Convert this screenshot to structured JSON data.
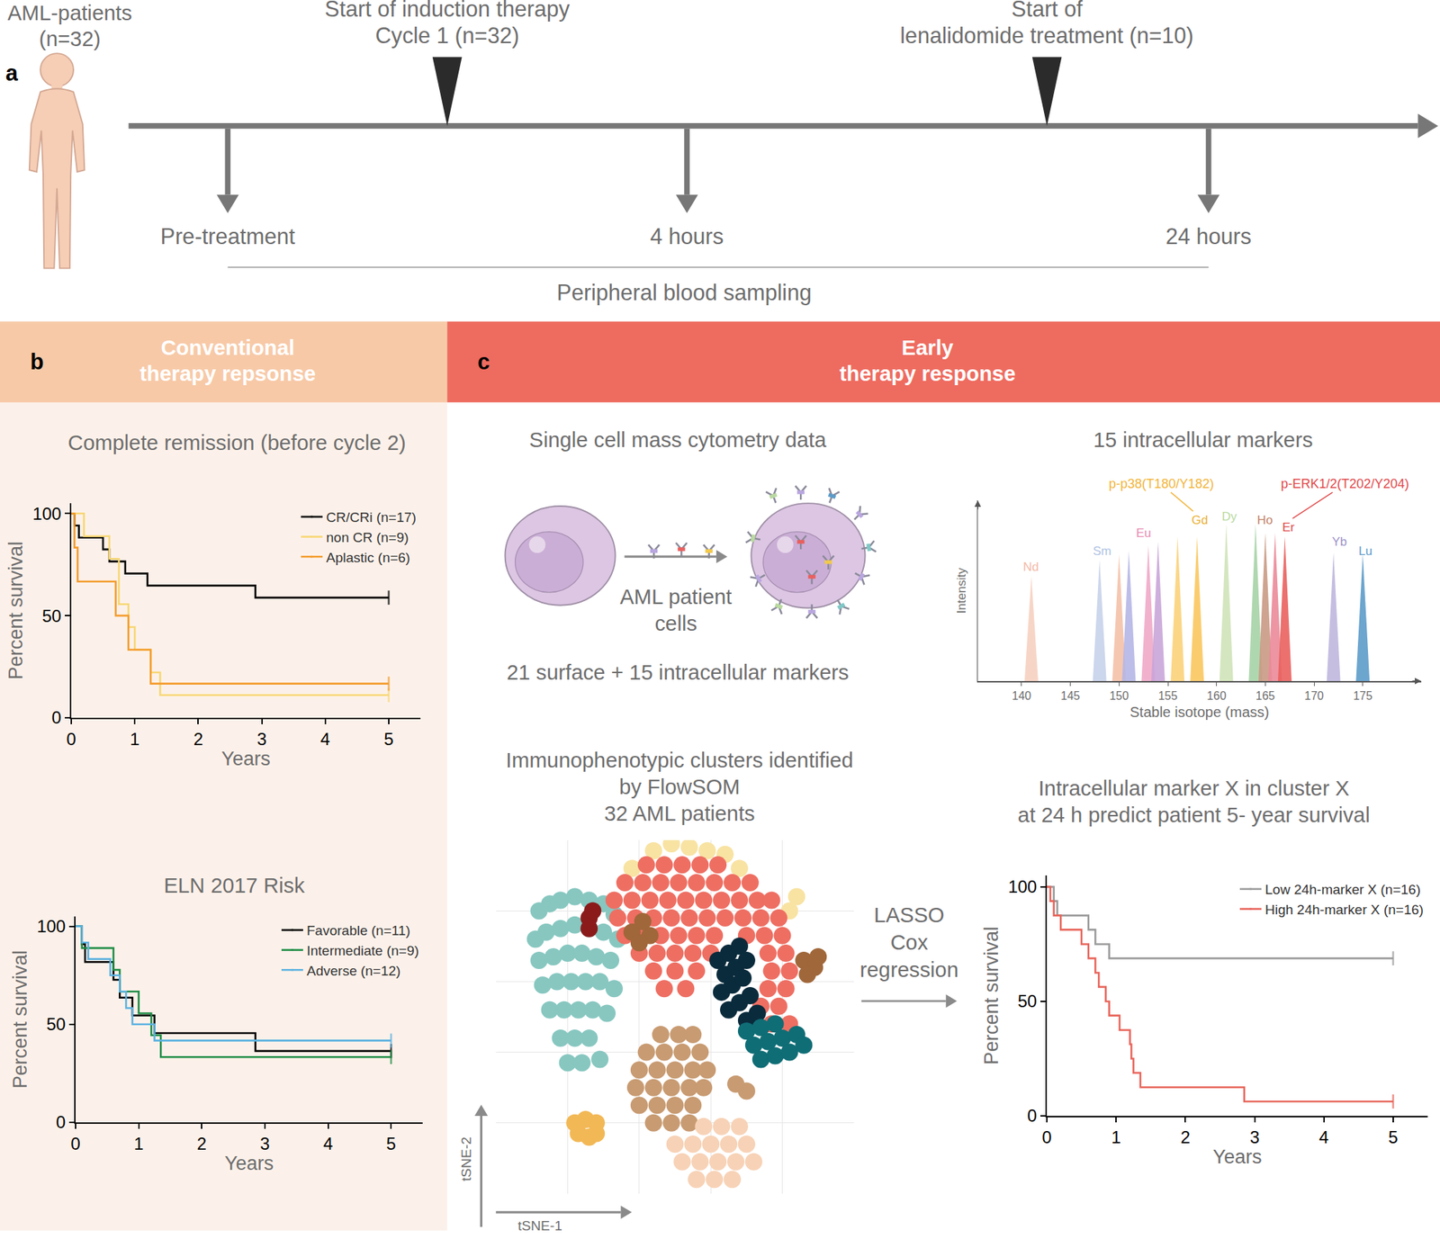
{
  "panel_a": {
    "label": "a",
    "patients": [
      "AML-patients",
      "(n=32)"
    ],
    "events": [
      [
        "Start of induction therapy",
        "Cycle 1 (n=32)"
      ],
      [
        "Start of",
        "lenalidomide treatment (n=10)"
      ]
    ],
    "samples": [
      "Pre-treatment",
      "4 hours",
      "24 hours"
    ],
    "sampling": "Peripheral blood sampling"
  },
  "panel_b": {
    "label": "b",
    "header": [
      "Conventional",
      "therapy repsonse"
    ]
  },
  "panel_c": {
    "label": "c",
    "header": [
      "Early",
      "therapy response"
    ],
    "mass_cytometry": {
      "title": "Single cell mass cytometry data",
      "cell_label": [
        "AML patient",
        "cells"
      ],
      "caption": "21 surface + 15 intracellular markers"
    },
    "method": [
      "LASSO",
      "Cox",
      "regression"
    ]
  },
  "chart_data": [
    {
      "type": "line",
      "title": [
        "Complete remission (before cycle 2)"
      ],
      "x_label": "Years",
      "y_label": "Percent survival",
      "xlim": [
        0,
        5.5
      ],
      "ylim": [
        0,
        105
      ],
      "xticks": [
        0,
        1,
        2,
        3,
        4,
        5
      ],
      "yticks": [
        0,
        50,
        100
      ],
      "line_style": "step",
      "marker": "line-ns",
      "legend": "top right",
      "series": [
        {
          "name": "CR/CRi (n=17)",
          "color": "#000000",
          "x": [
            0,
            0.05,
            0.12,
            0.5,
            0.6,
            0.85,
            1.2,
            2.9,
            5
          ],
          "values": [
            100,
            94.1,
            88.2,
            82.4,
            76.5,
            70.6,
            64.7,
            58.8,
            58.8
          ]
        },
        {
          "name": "non CR (n=9)",
          "color": "#F7D774",
          "x": [
            0,
            0.2,
            0.6,
            0.75,
            0.9,
            1.0,
            1.25,
            1.4,
            5
          ],
          "values": [
            100,
            88.9,
            77.8,
            55.6,
            44.4,
            33.3,
            22.2,
            11.1,
            11.1
          ]
        },
        {
          "name": "Aplastic (n=6)",
          "color": "#F39C2C",
          "x": [
            0,
            0.05,
            0.1,
            0.7,
            0.9,
            1.25,
            5
          ],
          "values": [
            100,
            83.3,
            66.7,
            50,
            33.3,
            16.7,
            16.7
          ]
        }
      ]
    },
    {
      "type": "line",
      "title": [
        "ELN 2017 Risk"
      ],
      "x_label": "Years",
      "y_label": "Percent survival",
      "xlim": [
        0,
        5.5
      ],
      "ylim": [
        0,
        105
      ],
      "xticks": [
        0,
        1,
        2,
        3,
        4,
        5
      ],
      "yticks": [
        0,
        50,
        100
      ],
      "line_style": "step",
      "marker": "line-ns",
      "legend": "top right",
      "series": [
        {
          "name": "Favorable (n=11)",
          "color": "#000000",
          "x": [
            0,
            0.1,
            0.15,
            0.6,
            0.7,
            0.9,
            1.25,
            2.85,
            5
          ],
          "values": [
            100,
            90.9,
            81.8,
            72.7,
            63.6,
            54.5,
            45.5,
            36.4,
            36.4
          ]
        },
        {
          "name": "Intermediate (n=9)",
          "color": "#1E8C45",
          "x": [
            0,
            0.1,
            0.6,
            0.7,
            1.0,
            1.2,
            1.35,
            5
          ],
          "values": [
            100,
            88.9,
            77.8,
            66.7,
            55.6,
            44.4,
            33.3,
            33.3
          ]
        },
        {
          "name": "Adverse (n=12)",
          "color": "#5BB2E0",
          "x": [
            0,
            0.1,
            0.2,
            0.55,
            0.7,
            0.8,
            0.9,
            1.25,
            5
          ],
          "values": [
            100,
            91.7,
            83.3,
            75,
            66.7,
            58.3,
            50,
            41.7,
            41.7
          ]
        }
      ]
    },
    {
      "type": "spectrum",
      "title": [
        "15 intracellular markers"
      ],
      "x_label": "Stable isotope (mass)",
      "y_label": "Intensity",
      "xlim": [
        135.5,
        181
      ],
      "ylim": [
        0,
        100
      ],
      "xticks": [
        140,
        145,
        150,
        155,
        160,
        165,
        170,
        175
      ],
      "tick_labels": "x",
      "x": [
        141,
        148,
        150,
        151,
        153,
        154,
        156,
        158,
        161,
        164,
        165,
        166,
        167,
        172,
        175
      ],
      "values": [
        58,
        67,
        70,
        72,
        75,
        77,
        80,
        80,
        87,
        87,
        82,
        82,
        80,
        71,
        70
      ],
      "colors": [
        "#F6D0C0",
        "#C7D2EA",
        "#F4C1A8",
        "#B5B6E6",
        "#F0A8C8",
        "#C9A5D8",
        "#FBD27A",
        "#F9C75E",
        "#CFE3B8",
        "#A6D3A6",
        "#C99A84",
        "#EB8A99",
        "#E9605E",
        "#BFB7DE",
        "#5C9BC9"
      ],
      "element_labels": [
        {
          "text": "Nd",
          "x": 141,
          "y": 63,
          "color": "#F4B9A6"
        },
        {
          "text": "Sm",
          "x": 148.3,
          "y": 72,
          "color": "#AFC3E3"
        },
        {
          "text": "Eu",
          "x": 152.5,
          "y": 82,
          "color": "#E98BB3"
        },
        {
          "text": "Gd",
          "x": 158.3,
          "y": 89,
          "color": "#E8B030"
        },
        {
          "text": "Dy",
          "x": 161.3,
          "y": 91,
          "color": "#B9D9A0"
        },
        {
          "text": "Ho",
          "x": 165,
          "y": 89,
          "color": "#C08469"
        },
        {
          "text": "Er",
          "x": 167.4,
          "y": 85,
          "color": "#E0484A"
        },
        {
          "text": "Yb",
          "x": 172.6,
          "y": 77,
          "color": "#9B93C8"
        },
        {
          "text": "Lu",
          "x": 175.3,
          "y": 72,
          "color": "#5C9BC9"
        }
      ],
      "callouts": [
        {
          "text": "p-p38(T180/Y182)",
          "color": "#F2B53A",
          "x": 157.6,
          "y": 94,
          "text_x": 154.3,
          "text_y": 109
        },
        {
          "text": "p-ERK1/2(T202/Y204)",
          "color": "#E0484A",
          "x": 167.8,
          "y": 90,
          "text_x": 173.2,
          "text_y": 109
        }
      ]
    },
    {
      "type": "scatter",
      "title": [
        "Immunophenotypic clusters identified",
        "by FlowSOM",
        "32 AML patients"
      ],
      "x_label": "tSNE-1",
      "y_label": "tSNE-2",
      "xlim": [
        0,
        100
      ],
      "ylim": [
        0,
        100
      ],
      "xticks": [
        20,
        40,
        60,
        80
      ],
      "yticks": [
        20,
        40,
        60,
        80
      ],
      "grid": true,
      "tick_labels": false,
      "series": [
        {
          "color": "#87C7C0",
          "x": [
            12,
            15,
            18,
            22,
            26,
            30,
            33,
            11,
            14,
            18,
            22,
            26,
            30,
            34,
            12,
            16,
            20,
            24,
            28,
            32,
            13,
            17,
            21,
            25,
            29,
            33,
            15,
            19,
            23,
            27,
            31,
            18,
            22,
            26,
            20,
            24,
            29
          ],
          "values": [
            80,
            82,
            83,
            84,
            83,
            82,
            79,
            72,
            74,
            75,
            76,
            75,
            74,
            72,
            66,
            67,
            68,
            68,
            67,
            66,
            59,
            60,
            60,
            60,
            60,
            58,
            52,
            52,
            52,
            52,
            51,
            44,
            44,
            44,
            37,
            37,
            38
          ]
        },
        {
          "color": "#C89B72",
          "x": [
            46,
            51,
            55,
            42,
            47,
            52,
            57,
            40,
            45,
            50,
            55,
            59,
            39,
            44,
            49,
            54,
            58,
            40,
            45,
            50,
            55,
            44,
            49,
            54,
            67,
            70
          ],
          "values": [
            45,
            45,
            45,
            40,
            40,
            40,
            40,
            35,
            35,
            35,
            35,
            35,
            30,
            30,
            30,
            30,
            30,
            25,
            25,
            25,
            25,
            20,
            20,
            20,
            31,
            29
          ]
        },
        {
          "color": "#F7D2B6",
          "x": [
            58,
            63,
            68,
            50,
            55,
            60,
            65,
            70,
            52,
            57,
            62,
            67,
            72,
            56,
            61,
            66
          ],
          "values": [
            19,
            19,
            19,
            14,
            14,
            14,
            14,
            14,
            9,
            9,
            9,
            9,
            9,
            4,
            4,
            4
          ]
        },
        {
          "color": "#F2B856",
          "x": [
            22,
            25,
            28,
            23,
            26,
            28
          ],
          "values": [
            20,
            21,
            20,
            17,
            16,
            17
          ]
        },
        {
          "color": "#F8E3A3",
          "x": [
            44,
            49,
            54,
            59,
            64,
            38,
            68,
            82,
            84
          ],
          "values": [
            97,
            99,
            98,
            97,
            96,
            92,
            92,
            80,
            84
          ]
        },
        {
          "color": "#EE6E62",
          "x": [
            42,
            47,
            52,
            57,
            62,
            36,
            41,
            46,
            51,
            56,
            61,
            66,
            71,
            33,
            38,
            43,
            48,
            53,
            58,
            63,
            68,
            73,
            77,
            34,
            39,
            44,
            49,
            54,
            59,
            64,
            69,
            74,
            79,
            36,
            41,
            46,
            51,
            56,
            61,
            70,
            75,
            80,
            40,
            45,
            50,
            55,
            60,
            76,
            81,
            44,
            50,
            56,
            77,
            82,
            47,
            53,
            76,
            81,
            74,
            79,
            72,
            77,
            82
          ],
          "values": [
            93,
            93,
            93,
            93,
            93,
            88,
            88,
            88,
            88,
            88,
            88,
            88,
            88,
            83,
            83,
            83,
            83,
            83,
            83,
            83,
            83,
            83,
            83,
            78,
            78,
            78,
            78,
            78,
            78,
            78,
            78,
            78,
            78,
            73,
            73,
            73,
            73,
            73,
            73,
            73,
            73,
            73,
            68,
            68,
            68,
            68,
            68,
            68,
            68,
            63,
            63,
            63,
            63,
            63,
            58,
            58,
            58,
            58,
            53,
            53,
            48,
            48,
            48
          ]
        },
        {
          "color": "#A0673A",
          "x": [
            38,
            41,
            43,
            40,
            86,
            89,
            87,
            90
          ],
          "values": [
            74,
            77,
            73,
            71,
            66,
            64,
            62,
            67
          ]
        },
        {
          "color": "#0A2B3C",
          "x": [
            62,
            65,
            68,
            64,
            67,
            70,
            63,
            66,
            69,
            65,
            68,
            71,
            70,
            73
          ],
          "values": [
            66,
            68,
            70,
            62,
            64,
            66,
            57,
            59,
            61,
            52,
            54,
            56,
            49,
            51
          ]
        },
        {
          "color": "#0F6D75",
          "x": [
            70,
            74,
            78,
            72,
            76,
            80,
            84,
            74,
            78,
            82,
            86
          ],
          "values": [
            46,
            47,
            48,
            42,
            43,
            44,
            45,
            38,
            39,
            40,
            42
          ]
        },
        {
          "color": "#8B1A1A",
          "x": [
            26,
            26,
            27
          ],
          "values": [
            78,
            75,
            80
          ]
        }
      ]
    },
    {
      "type": "line",
      "title": [
        "Intracellular marker X in cluster X",
        "at 24 h predict patient 5- year survival"
      ],
      "x_label": "Years",
      "y_label": "Percent survival",
      "xlim": [
        0,
        5.5
      ],
      "ylim": [
        0,
        105
      ],
      "xticks": [
        0,
        1,
        2,
        3,
        4,
        5
      ],
      "yticks": [
        0,
        50,
        100
      ],
      "line_style": "step",
      "marker": "line-ns",
      "legend": "top right",
      "series": [
        {
          "name": "Low 24h-marker X (n=16)",
          "color": "#9A9A9A",
          "x": [
            0,
            0.1,
            0.15,
            0.6,
            0.7,
            0.9,
            5
          ],
          "values": [
            100,
            93.8,
            87.5,
            81.3,
            75,
            68.8,
            68.8
          ]
        },
        {
          "name": "High 24h-marker X (n=16)",
          "color": "#E8645A",
          "x": [
            0,
            0.05,
            0.1,
            0.2,
            0.5,
            0.6,
            0.7,
            0.75,
            0.85,
            0.9,
            1.05,
            1.2,
            1.22,
            1.25,
            1.35,
            2.85,
            5
          ],
          "values": [
            100,
            93.8,
            87.5,
            81.3,
            75,
            68.8,
            62.5,
            56.3,
            50,
            43.8,
            37.5,
            31.3,
            25,
            18.8,
            12.5,
            6.3,
            6.3
          ]
        }
      ]
    }
  ]
}
